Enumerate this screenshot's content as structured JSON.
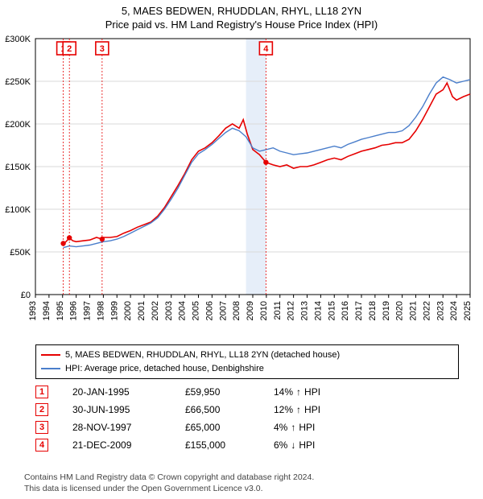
{
  "title_line1": "5, MAES BEDWEN, RHUDDLAN, RHYL, LL18 2YN",
  "title_line2": "Price paid vs. HM Land Registry's House Price Index (HPI)",
  "chart": {
    "type": "line",
    "background_color": "#ffffff",
    "plot_border_color": "#000000",
    "grid_color": "#d9d9d9",
    "band_color": "#e6eef9",
    "x_axis": {
      "min_year": 1993,
      "max_year": 2025,
      "tick_years": [
        1993,
        1994,
        1995,
        1996,
        1997,
        1998,
        1999,
        2000,
        2001,
        2002,
        2003,
        2004,
        2005,
        2006,
        2007,
        2008,
        2009,
        2010,
        2011,
        2012,
        2013,
        2014,
        2015,
        2016,
        2017,
        2018,
        2019,
        2020,
        2021,
        2022,
        2023,
        2024,
        2025
      ],
      "label_fontsize": 11
    },
    "y_axis": {
      "min": 0,
      "max": 300000,
      "ticks": [
        0,
        50000,
        100000,
        150000,
        200000,
        250000,
        300000
      ],
      "tick_labels": [
        "£0",
        "£50K",
        "£100K",
        "£150K",
        "£200K",
        "£250K",
        "£300K"
      ],
      "label_fontsize": 11
    },
    "series": [
      {
        "name": "property",
        "label": "5, MAES BEDWEN, RHUDDLAN, RHYL, LL18 2YN (detached house)",
        "color": "#e60000",
        "line_width": 1.6,
        "points": [
          [
            1995.05,
            59950
          ],
          [
            1995.25,
            62000
          ],
          [
            1995.5,
            66500
          ],
          [
            1995.75,
            63000
          ],
          [
            1996.0,
            62000
          ],
          [
            1996.5,
            63000
          ],
          [
            1997.0,
            64000
          ],
          [
            1997.5,
            67000
          ],
          [
            1997.91,
            65000
          ],
          [
            1998.0,
            67000
          ],
          [
            1998.5,
            67000
          ],
          [
            1999.0,
            68000
          ],
          [
            1999.5,
            72000
          ],
          [
            2000.0,
            75000
          ],
          [
            2000.5,
            79000
          ],
          [
            2001.0,
            82000
          ],
          [
            2001.5,
            85000
          ],
          [
            2002.0,
            92000
          ],
          [
            2002.5,
            102000
          ],
          [
            2003.0,
            115000
          ],
          [
            2003.5,
            128000
          ],
          [
            2004.0,
            142000
          ],
          [
            2004.5,
            158000
          ],
          [
            2005.0,
            168000
          ],
          [
            2005.5,
            172000
          ],
          [
            2006.0,
            178000
          ],
          [
            2006.5,
            186000
          ],
          [
            2007.0,
            195000
          ],
          [
            2007.5,
            200000
          ],
          [
            2008.0,
            195000
          ],
          [
            2008.3,
            205000
          ],
          [
            2008.6,
            188000
          ],
          [
            2009.0,
            170000
          ],
          [
            2009.5,
            164000
          ],
          [
            2009.97,
            155000
          ],
          [
            2010.5,
            152000
          ],
          [
            2011.0,
            150000
          ],
          [
            2011.5,
            152000
          ],
          [
            2012.0,
            148000
          ],
          [
            2012.5,
            150000
          ],
          [
            2013.0,
            150000
          ],
          [
            2013.5,
            152000
          ],
          [
            2014.0,
            155000
          ],
          [
            2014.5,
            158000
          ],
          [
            2015.0,
            160000
          ],
          [
            2015.5,
            158000
          ],
          [
            2016.0,
            162000
          ],
          [
            2016.5,
            165000
          ],
          [
            2017.0,
            168000
          ],
          [
            2017.5,
            170000
          ],
          [
            2018.0,
            172000
          ],
          [
            2018.5,
            175000
          ],
          [
            2019.0,
            176000
          ],
          [
            2019.5,
            178000
          ],
          [
            2020.0,
            178000
          ],
          [
            2020.5,
            182000
          ],
          [
            2021.0,
            192000
          ],
          [
            2021.5,
            205000
          ],
          [
            2022.0,
            220000
          ],
          [
            2022.5,
            235000
          ],
          [
            2023.0,
            240000
          ],
          [
            2023.3,
            248000
          ],
          [
            2023.7,
            232000
          ],
          [
            2024.0,
            228000
          ],
          [
            2024.5,
            232000
          ],
          [
            2025.0,
            235000
          ]
        ]
      },
      {
        "name": "hpi",
        "label": "HPI: Average price, detached house, Denbighshire",
        "color": "#4a7ecb",
        "line_width": 1.4,
        "points": [
          [
            1995.05,
            55000
          ],
          [
            1995.5,
            57000
          ],
          [
            1996.0,
            56000
          ],
          [
            1996.5,
            57000
          ],
          [
            1997.0,
            58000
          ],
          [
            1997.5,
            60000
          ],
          [
            1998.0,
            62000
          ],
          [
            1998.5,
            63000
          ],
          [
            1999.0,
            65000
          ],
          [
            1999.5,
            68000
          ],
          [
            2000.0,
            72000
          ],
          [
            2000.5,
            76000
          ],
          [
            2001.0,
            80000
          ],
          [
            2001.5,
            84000
          ],
          [
            2002.0,
            90000
          ],
          [
            2002.5,
            100000
          ],
          [
            2003.0,
            112000
          ],
          [
            2003.5,
            125000
          ],
          [
            2004.0,
            140000
          ],
          [
            2004.5,
            155000
          ],
          [
            2005.0,
            165000
          ],
          [
            2005.5,
            170000
          ],
          [
            2006.0,
            176000
          ],
          [
            2006.5,
            183000
          ],
          [
            2007.0,
            190000
          ],
          [
            2007.5,
            195000
          ],
          [
            2008.0,
            192000
          ],
          [
            2008.5,
            185000
          ],
          [
            2009.0,
            172000
          ],
          [
            2009.5,
            168000
          ],
          [
            2010.0,
            170000
          ],
          [
            2010.5,
            172000
          ],
          [
            2011.0,
            168000
          ],
          [
            2011.5,
            166000
          ],
          [
            2012.0,
            164000
          ],
          [
            2012.5,
            165000
          ],
          [
            2013.0,
            166000
          ],
          [
            2013.5,
            168000
          ],
          [
            2014.0,
            170000
          ],
          [
            2014.5,
            172000
          ],
          [
            2015.0,
            174000
          ],
          [
            2015.5,
            172000
          ],
          [
            2016.0,
            176000
          ],
          [
            2016.5,
            179000
          ],
          [
            2017.0,
            182000
          ],
          [
            2017.5,
            184000
          ],
          [
            2018.0,
            186000
          ],
          [
            2018.5,
            188000
          ],
          [
            2019.0,
            190000
          ],
          [
            2019.5,
            190000
          ],
          [
            2020.0,
            192000
          ],
          [
            2020.5,
            198000
          ],
          [
            2021.0,
            208000
          ],
          [
            2021.5,
            220000
          ],
          [
            2022.0,
            235000
          ],
          [
            2022.5,
            248000
          ],
          [
            2023.0,
            255000
          ],
          [
            2023.5,
            252000
          ],
          [
            2024.0,
            248000
          ],
          [
            2024.5,
            250000
          ],
          [
            2025.0,
            252000
          ]
        ]
      }
    ],
    "sale_markers": [
      {
        "n": 1,
        "year": 1995.05,
        "price": 59950
      },
      {
        "n": 2,
        "year": 1995.5,
        "price": 66500
      },
      {
        "n": 3,
        "year": 1997.91,
        "price": 65000
      },
      {
        "n": 4,
        "year": 2009.97,
        "price": 155000
      }
    ],
    "band": {
      "start_year": 2008.5,
      "end_year": 2009.97
    }
  },
  "legend": {
    "series1_label": "5, MAES BEDWEN, RHUDDLAN, RHYL, LL18 2YN (detached house)",
    "series2_label": "HPI: Average price, detached house, Denbighshire",
    "series1_color": "#e60000",
    "series2_color": "#4a7ecb"
  },
  "sales": [
    {
      "n": "1",
      "date": "20-JAN-1995",
      "price": "£59,950",
      "delta": "14%",
      "dir": "↑",
      "vs": "HPI"
    },
    {
      "n": "2",
      "date": "30-JUN-1995",
      "price": "£66,500",
      "delta": "12%",
      "dir": "↑",
      "vs": "HPI"
    },
    {
      "n": "3",
      "date": "28-NOV-1997",
      "price": "£65,000",
      "delta": "4%",
      "dir": "↑",
      "vs": "HPI"
    },
    {
      "n": "4",
      "date": "21-DEC-2009",
      "price": "£155,000",
      "delta": "6%",
      "dir": "↓",
      "vs": "HPI"
    }
  ],
  "footer_line1": "Contains HM Land Registry data © Crown copyright and database right 2024.",
  "footer_line2": "This data is licensed under the Open Government Licence v3.0.",
  "marker_box_color": "#e60000"
}
